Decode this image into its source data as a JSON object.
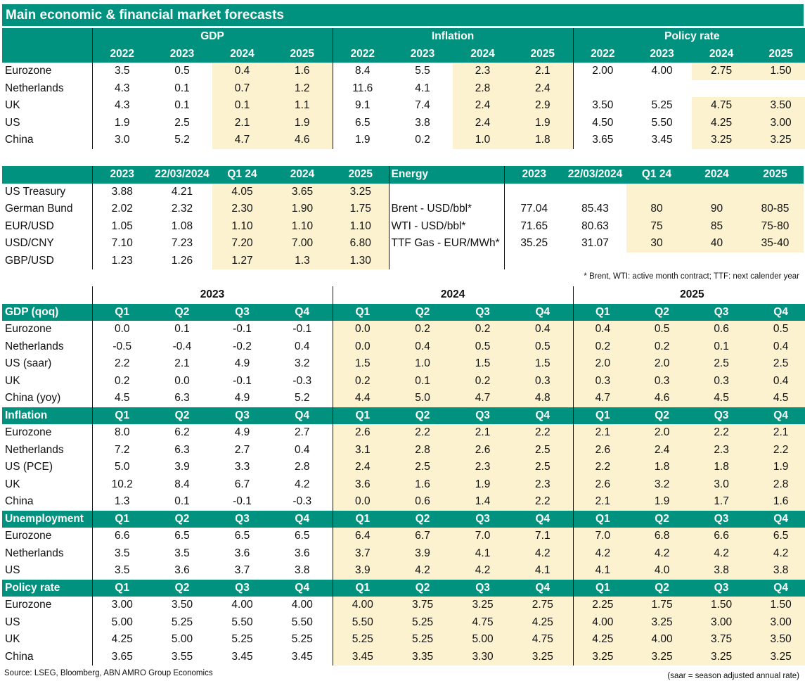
{
  "title": "Main economic & financial market forecasts",
  "annual": {
    "groups": [
      "GDP",
      "Inflation",
      "Policy rate"
    ],
    "years": [
      "2022",
      "2023",
      "2024",
      "2025"
    ],
    "rows": [
      {
        "label": "Eurozone",
        "gdp": [
          "3.5",
          "0.5",
          "0.4",
          "1.6"
        ],
        "inflation": [
          "8.4",
          "5.5",
          "2.3",
          "2.1"
        ],
        "policy": [
          "2.00",
          "4.00",
          "2.75",
          "1.50"
        ]
      },
      {
        "label": "Netherlands",
        "gdp": [
          "4.3",
          "0.1",
          "0.7",
          "1.2"
        ],
        "inflation": [
          "11.6",
          "4.1",
          "2.8",
          "2.4"
        ],
        "policy": [
          "",
          "",
          "",
          ""
        ]
      },
      {
        "label": "UK",
        "gdp": [
          "4.3",
          "0.1",
          "0.1",
          "1.1"
        ],
        "inflation": [
          "9.1",
          "7.4",
          "2.4",
          "2.9"
        ],
        "policy": [
          "3.50",
          "5.25",
          "4.75",
          "3.50"
        ]
      },
      {
        "label": "US",
        "gdp": [
          "1.9",
          "2.5",
          "2.1",
          "1.9"
        ],
        "inflation": [
          "6.5",
          "3.8",
          "2.4",
          "1.9"
        ],
        "policy": [
          "4.50",
          "5.50",
          "4.25",
          "3.00"
        ]
      },
      {
        "label": "China",
        "gdp": [
          "3.0",
          "5.2",
          "4.7",
          "4.6"
        ],
        "inflation": [
          "1.9",
          "0.2",
          "1.0",
          "1.8"
        ],
        "policy": [
          "3.65",
          "3.45",
          "3.25",
          "3.25"
        ]
      }
    ]
  },
  "markets": {
    "left_headers": [
      "2023",
      "22/03/2024",
      "Q1 24",
      "2024",
      "2025"
    ],
    "energy_title": "Energy",
    "right_headers": [
      "2023",
      "22/03/2024",
      "Q1 24",
      "2024",
      "2025"
    ],
    "left_rows": [
      {
        "label": "US Treasury",
        "values": [
          "3.88",
          "4.21",
          "4.05",
          "3.65",
          "3.25"
        ]
      },
      {
        "label": "German Bund",
        "values": [
          "2.02",
          "2.32",
          "2.30",
          "1.90",
          "1.75"
        ]
      },
      {
        "label": "EUR/USD",
        "values": [
          "1.05",
          "1.08",
          "1.10",
          "1.10",
          "1.10"
        ]
      },
      {
        "label": "USD/CNY",
        "values": [
          "7.10",
          "7.23",
          "7.20",
          "7.00",
          "6.80"
        ]
      },
      {
        "label": "GBP/USD",
        "values": [
          "1.23",
          "1.26",
          "1.27",
          "1.3",
          "1.30"
        ]
      }
    ],
    "right_rows": [
      {
        "label": "",
        "values": [
          "",
          "",
          "",
          "",
          ""
        ]
      },
      {
        "label": "Brent - USD/bbl*",
        "values": [
          "77.04",
          "85.43",
          "80",
          "90",
          "80-85"
        ]
      },
      {
        "label": "WTI - USD/bbl*",
        "values": [
          "71.65",
          "80.63",
          "75",
          "85",
          "75-80"
        ]
      },
      {
        "label": "TTF Gas - EUR/MWh*",
        "values": [
          "35.25",
          "31.07",
          "30",
          "40",
          "35-40"
        ]
      },
      {
        "label": "",
        "values": [
          "",
          "",
          "",
          "",
          ""
        ]
      }
    ],
    "note": "* Brent, WTI: active month contract; TTF: next calender year"
  },
  "quarterly": {
    "years": [
      "2023",
      "2024",
      "2025"
    ],
    "quarters": [
      "Q1",
      "Q2",
      "Q3",
      "Q4"
    ],
    "sections": [
      {
        "title": "GDP (qoq)",
        "rows": [
          {
            "label": "Eurozone",
            "values": [
              "0.0",
              "0.1",
              "-0.1",
              "-0.1",
              "0.0",
              "0.2",
              "0.2",
              "0.4",
              "0.4",
              "0.5",
              "0.6",
              "0.5"
            ]
          },
          {
            "label": "Netherlands",
            "values": [
              "-0.5",
              "-0.4",
              "-0.2",
              "0.4",
              "0.0",
              "0.4",
              "0.5",
              "0.5",
              "0.2",
              "0.2",
              "0.1",
              "0.4"
            ]
          },
          {
            "label": "US (saar)",
            "values": [
              "2.2",
              "2.1",
              "4.9",
              "3.2",
              "1.5",
              "1.0",
              "1.5",
              "1.5",
              "2.0",
              "2.0",
              "2.5",
              "2.5"
            ]
          },
          {
            "label": "UK",
            "values": [
              "0.2",
              "0.0",
              "-0.1",
              "-0.3",
              "0.2",
              "0.1",
              "0.2",
              "0.3",
              "0.3",
              "0.3",
              "0.3",
              "0.4"
            ]
          },
          {
            "label": "China (yoy)",
            "values": [
              "4.5",
              "6.3",
              "4.9",
              "5.2",
              "4.4",
              "5.0",
              "4.7",
              "4.8",
              "4.7",
              "4.6",
              "4.5",
              "4.5"
            ]
          }
        ]
      },
      {
        "title": "Inflation",
        "rows": [
          {
            "label": "Eurozone",
            "values": [
              "8.0",
              "6.2",
              "4.9",
              "2.7",
              "2.6",
              "2.2",
              "2.1",
              "2.2",
              "2.1",
              "2.0",
              "2.2",
              "2.1"
            ]
          },
          {
            "label": "Netherlands",
            "values": [
              "7.2",
              "6.3",
              "2.7",
              "0.4",
              "3.1",
              "2.8",
              "2.6",
              "2.5",
              "2.6",
              "2.4",
              "2.3",
              "2.2"
            ]
          },
          {
            "label": "US (PCE)",
            "values": [
              "5.0",
              "3.9",
              "3.3",
              "2.8",
              "2.4",
              "2.5",
              "2.3",
              "2.5",
              "2.2",
              "1.8",
              "1.8",
              "1.9"
            ]
          },
          {
            "label": "UK",
            "values": [
              "10.2",
              "8.4",
              "6.7",
              "4.2",
              "3.6",
              "1.6",
              "1.9",
              "2.3",
              "2.6",
              "3.2",
              "3.0",
              "2.8"
            ]
          },
          {
            "label": "China",
            "values": [
              "1.3",
              "0.1",
              "-0.1",
              "-0.3",
              "0.0",
              "0.6",
              "1.4",
              "2.2",
              "2.1",
              "1.9",
              "1.7",
              "1.6"
            ]
          }
        ]
      },
      {
        "title": "Unemployment",
        "rows": [
          {
            "label": "Eurozone",
            "values": [
              "6.6",
              "6.5",
              "6.5",
              "6.5",
              "6.4",
              "6.7",
              "7.0",
              "7.1",
              "7.0",
              "6.8",
              "6.6",
              "6.5"
            ]
          },
          {
            "label": "Netherlands",
            "values": [
              "3.5",
              "3.5",
              "3.6",
              "3.6",
              "3.7",
              "3.9",
              "4.1",
              "4.2",
              "4.2",
              "4.2",
              "4.2",
              "4.2"
            ]
          },
          {
            "label": "US",
            "values": [
              "3.5",
              "3.6",
              "3.7",
              "3.8",
              "3.9",
              "4.2",
              "4.2",
              "4.1",
              "4.1",
              "4.0",
              "3.8",
              "3.8"
            ]
          }
        ]
      },
      {
        "title": "Policy rate",
        "rows": [
          {
            "label": "Eurozone",
            "values": [
              "3.00",
              "3.50",
              "4.00",
              "4.00",
              "4.00",
              "3.75",
              "3.25",
              "2.75",
              "2.25",
              "1.75",
              "1.50",
              "1.50"
            ]
          },
          {
            "label": "US",
            "values": [
              "5.00",
              "5.25",
              "5.50",
              "5.50",
              "5.50",
              "5.25",
              "4.75",
              "4.25",
              "4.00",
              "3.25",
              "3.00",
              "3.00"
            ]
          },
          {
            "label": "UK",
            "values": [
              "4.25",
              "5.00",
              "5.25",
              "5.25",
              "5.25",
              "5.25",
              "5.00",
              "4.75",
              "4.25",
              "4.00",
              "3.75",
              "3.50"
            ]
          },
          {
            "label": "China",
            "values": [
              "3.65",
              "3.55",
              "3.45",
              "3.45",
              "3.45",
              "3.35",
              "3.30",
              "3.25",
              "3.25",
              "3.25",
              "3.25",
              "3.25"
            ]
          }
        ]
      }
    ]
  },
  "footer": {
    "source": "Source: LSEG, Bloomberg, ABN AMRO Group Economics",
    "saar_note": "(saar = season adjusted annual rate)"
  },
  "colors": {
    "header": "#00927f",
    "shade": "#fdf2d0"
  }
}
